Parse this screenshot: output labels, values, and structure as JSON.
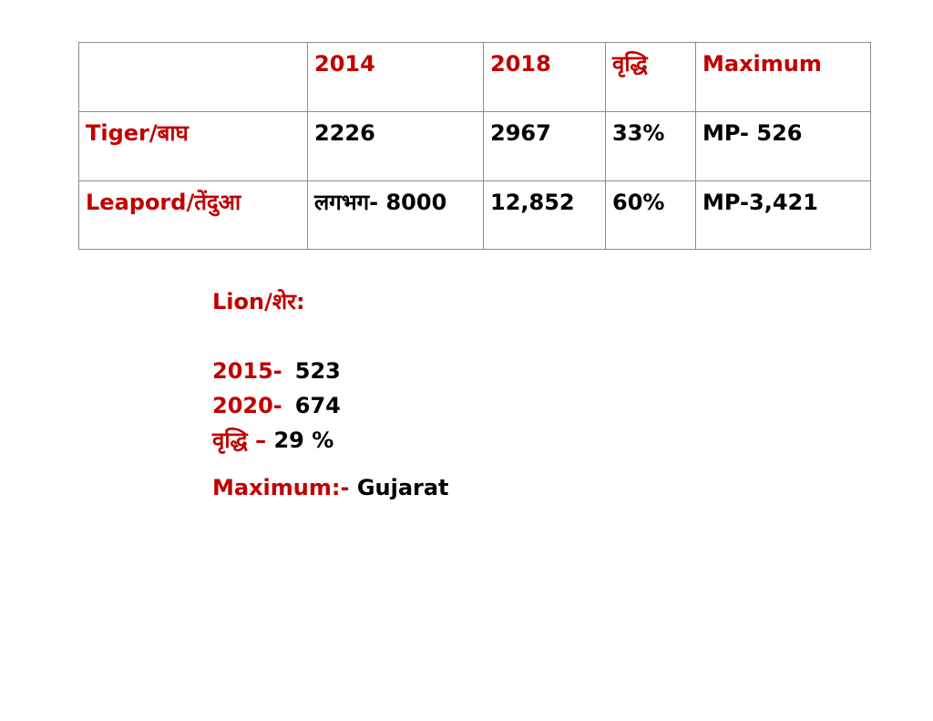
{
  "table": {
    "header": [
      "",
      "2014",
      "2018",
      "वृद्धि",
      "Maximum"
    ],
    "rows": [
      {
        "label": "Tiger/बाघ",
        "cells": [
          "2226",
          "2967",
          "33%",
          "MP- 526"
        ]
      },
      {
        "label": "Leapord/तेंदुआ",
        "cells": [
          "लगभग- 8000",
          "12,852",
          "60%",
          "MP-3,421"
        ]
      }
    ]
  },
  "lion": {
    "title": "Lion/शेर:",
    "entries": [
      {
        "year": "2015-",
        "value": "523"
      },
      {
        "year": "2020-",
        "value": "674"
      }
    ],
    "growth_label": "वृद्धि –",
    "growth_value": "29 %",
    "maximum_label": "Maximum:-",
    "maximum_value": "Gujarat"
  },
  "colors": {
    "accent": "#c00000",
    "text": "#000000",
    "border": "#8c8c8c"
  }
}
